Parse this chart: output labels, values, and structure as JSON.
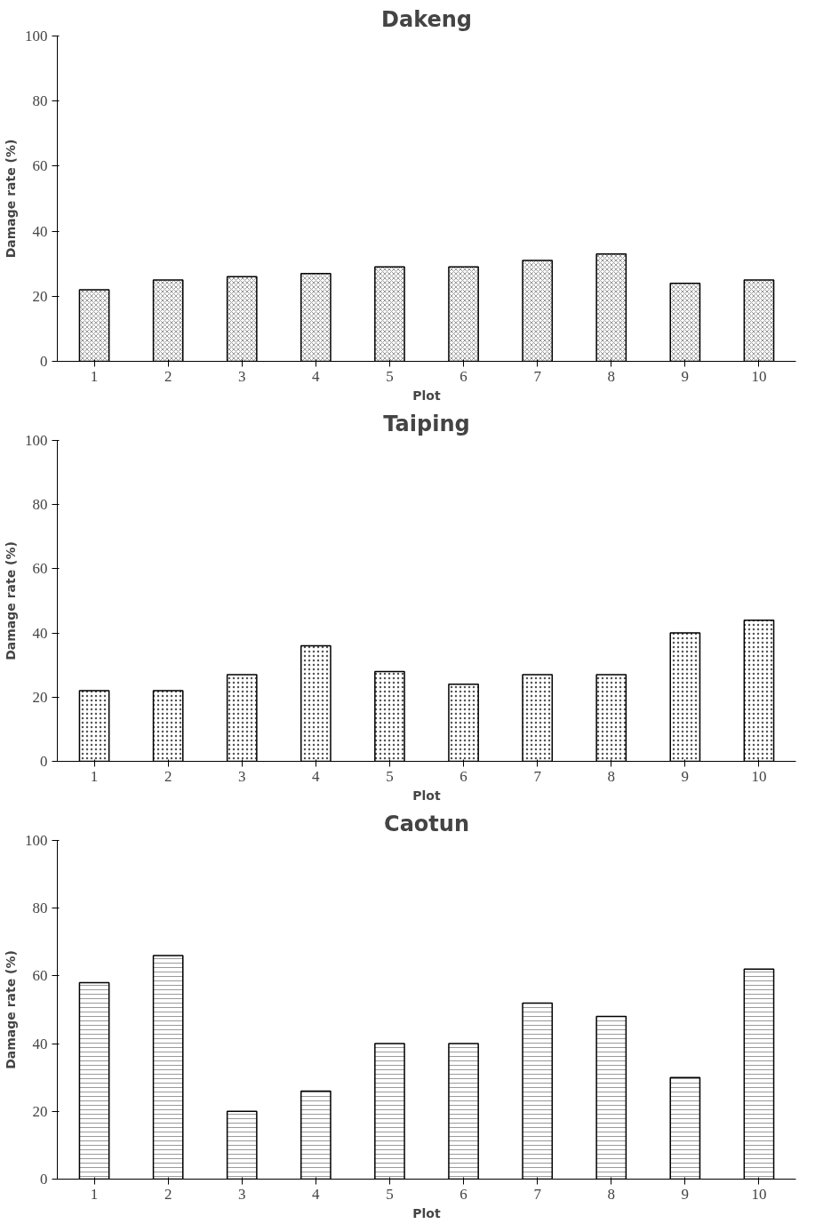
{
  "chart_data": [
    {
      "type": "bar",
      "title": "Dakeng",
      "xlabel": "Plot",
      "ylabel": "Damage rate (%)",
      "categories": [
        "1",
        "2",
        "3",
        "4",
        "5",
        "6",
        "7",
        "8",
        "9",
        "10"
      ],
      "values": [
        22,
        25,
        26,
        27,
        29,
        29,
        31,
        33,
        24,
        25
      ],
      "color": "#ffffff",
      "ylim": [
        0,
        100
      ],
      "yticks": [
        0,
        20,
        40,
        60,
        80,
        100
      ]
    },
    {
      "type": "bar",
      "title": "Taiping",
      "xlabel": "Plot",
      "ylabel": "Damage rate (%)",
      "categories": [
        "1",
        "2",
        "3",
        "4",
        "5",
        "6",
        "7",
        "8",
        "9",
        "10"
      ],
      "values": [
        22,
        22,
        27,
        36,
        28,
        24,
        27,
        27,
        40,
        44
      ],
      "color": "#ffffff",
      "ylim": [
        0,
        100
      ],
      "yticks": [
        0,
        20,
        40,
        60,
        80,
        100
      ]
    },
    {
      "type": "bar",
      "title": "Caotun",
      "xlabel": "Plot",
      "ylabel": "Damage rate (%)",
      "categories": [
        "1",
        "2",
        "3",
        "4",
        "5",
        "6",
        "7",
        "8",
        "9",
        "10"
      ],
      "values": [
        58,
        66,
        20,
        26,
        40,
        40,
        52,
        48,
        30,
        62
      ],
      "color": "#ffffff",
      "ylim": [
        0,
        100
      ],
      "yticks": [
        0,
        20,
        40,
        60,
        80,
        100
      ]
    }
  ]
}
